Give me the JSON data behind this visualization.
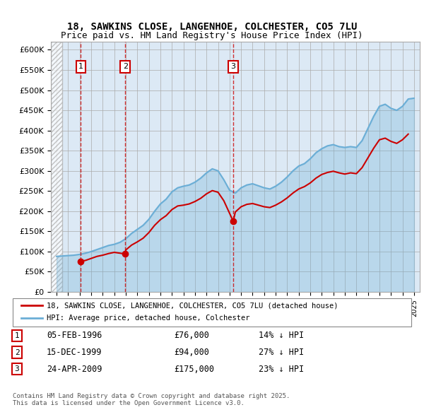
{
  "title1": "18, SAWKINS CLOSE, LANGENHOE, COLCHESTER, CO5 7LU",
  "title2": "Price paid vs. HM Land Registry's House Price Index (HPI)",
  "ylabel_ticks": [
    "£0",
    "£50K",
    "£100K",
    "£150K",
    "£200K",
    "£250K",
    "£300K",
    "£350K",
    "£400K",
    "£450K",
    "£500K",
    "£550K",
    "£600K"
  ],
  "ytick_values": [
    0,
    50000,
    100000,
    150000,
    200000,
    250000,
    300000,
    350000,
    400000,
    450000,
    500000,
    550000,
    600000
  ],
  "xlim_start": 1993.5,
  "xlim_end": 2025.5,
  "ylim_min": 0,
  "ylim_max": 620000,
  "background_color": "#dce9f5",
  "plot_bg_color": "#dce9f5",
  "hatch_region_end": 1994.5,
  "hpi_color": "#6baed6",
  "price_color": "#cc0000",
  "grid_color": "#aaaaaa",
  "sale_points": [
    {
      "num": 1,
      "year": 1996.1,
      "price": 76000,
      "label": "1"
    },
    {
      "num": 2,
      "year": 1999.96,
      "price": 94000,
      "label": "2"
    },
    {
      "num": 3,
      "year": 2009.32,
      "price": 175000,
      "label": "3"
    }
  ],
  "legend_entries": [
    "18, SAWKINS CLOSE, LANGENHOE, COLCHESTER, CO5 7LU (detached house)",
    "HPI: Average price, detached house, Colchester"
  ],
  "table_rows": [
    {
      "num": "1",
      "date": "05-FEB-1996",
      "price": "£76,000",
      "pct": "14% ↓ HPI"
    },
    {
      "num": "2",
      "date": "15-DEC-1999",
      "price": "£94,000",
      "pct": "27% ↓ HPI"
    },
    {
      "num": "3",
      "date": "24-APR-2009",
      "price": "£175,000",
      "pct": "23% ↓ HPI"
    }
  ],
  "footnote": "Contains HM Land Registry data © Crown copyright and database right 2025.\nThis data is licensed under the Open Government Licence v3.0.",
  "hpi_data": {
    "years": [
      1994,
      1994.5,
      1995,
      1995.5,
      1996,
      1996.5,
      1997,
      1997.5,
      1998,
      1998.5,
      1999,
      1999.5,
      2000,
      2000.5,
      2001,
      2001.5,
      2002,
      2002.5,
      2003,
      2003.5,
      2004,
      2004.5,
      2005,
      2005.5,
      2006,
      2006.5,
      2007,
      2007.5,
      2008,
      2008.5,
      2009,
      2009.5,
      2010,
      2010.5,
      2011,
      2011.5,
      2012,
      2012.5,
      2013,
      2013.5,
      2014,
      2014.5,
      2015,
      2015.5,
      2016,
      2016.5,
      2017,
      2017.5,
      2018,
      2018.5,
      2019,
      2019.5,
      2020,
      2020.5,
      2021,
      2021.5,
      2022,
      2022.5,
      2023,
      2023.5,
      2024,
      2024.5,
      2025
    ],
    "values": [
      88000,
      89000,
      90000,
      91000,
      93000,
      96000,
      100000,
      105000,
      110000,
      115000,
      118000,
      123000,
      132000,
      145000,
      155000,
      165000,
      180000,
      200000,
      218000,
      230000,
      248000,
      258000,
      262000,
      265000,
      272000,
      282000,
      295000,
      305000,
      300000,
      278000,
      252000,
      245000,
      258000,
      265000,
      268000,
      263000,
      258000,
      255000,
      262000,
      272000,
      285000,
      300000,
      312000,
      318000,
      330000,
      345000,
      355000,
      362000,
      365000,
      360000,
      358000,
      360000,
      358000,
      375000,
      405000,
      435000,
      460000,
      465000,
      455000,
      450000,
      460000,
      478000,
      480000
    ]
  },
  "price_data": {
    "years": [
      1996.1,
      1996.5,
      1997,
      1997.5,
      1998,
      1998.5,
      1999,
      1999.96,
      2000,
      2000.5,
      2001,
      2001.5,
      2002,
      2002.5,
      2003,
      2003.5,
      2004,
      2004.5,
      2005,
      2005.5,
      2006,
      2006.5,
      2007,
      2007.5,
      2008,
      2008.5,
      2009.32,
      2009.5,
      2010,
      2010.5,
      2011,
      2011.5,
      2012,
      2012.5,
      2013,
      2013.5,
      2014,
      2014.5,
      2015,
      2015.5,
      2016,
      2016.5,
      2017,
      2017.5,
      2018,
      2018.5,
      2019,
      2019.5,
      2020,
      2020.5,
      2021,
      2021.5,
      2022,
      2022.5,
      2023,
      2023.5,
      2024,
      2024.5
    ],
    "values": [
      76000,
      78000,
      83000,
      88000,
      91000,
      95000,
      98000,
      94000,
      104000,
      116000,
      124000,
      133000,
      147000,
      165000,
      179000,
      189000,
      204000,
      213000,
      215000,
      218000,
      224000,
      232000,
      243000,
      251000,
      247000,
      226000,
      175000,
      198000,
      211000,
      217000,
      219000,
      215000,
      211000,
      209000,
      215000,
      223000,
      233000,
      245000,
      255000,
      261000,
      270000,
      282000,
      291000,
      296000,
      299000,
      295000,
      292000,
      295000,
      293000,
      308000,
      332000,
      356000,
      377000,
      381000,
      373000,
      368000,
      377000,
      391000
    ]
  }
}
